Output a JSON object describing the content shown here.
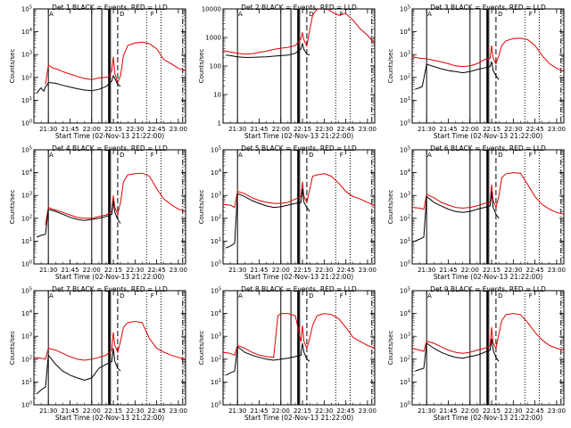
{
  "figure": {
    "x_start_label": "Start Time (02-Nov-13 21:22:00)",
    "y_axis_label": "Counts/sec",
    "x_tick_labels": [
      "21:30",
      "21:45",
      "22:00",
      "22:15",
      "22:30",
      "22:45",
      "23:00"
    ],
    "x_tick_values_min": [
      0,
      15,
      30,
      45,
      60,
      75,
      90
    ],
    "x_range_min": [
      -10,
      95
    ],
    "annotation_letters": [
      "A",
      "D",
      "F"
    ],
    "series_colors": {
      "black_events": "#000000",
      "red_lld": "#e00000"
    }
  },
  "chart_data": [
    {
      "type": "line",
      "panel": 1,
      "title": "Det 1  BLACK = Events, RED = LLD",
      "ylim": [
        1,
        100000
      ],
      "yscale": "log",
      "y_tick_labels": [
        "10^0",
        "10^1",
        "10^2",
        "10^3",
        "10^4",
        "10^5"
      ],
      "x_min": [
        -10,
        95
      ],
      "series": [
        {
          "name": "Events",
          "color": "#000000",
          "x": [
            -8,
            -7,
            -6,
            -5,
            -4,
            -3,
            -2,
            -1,
            0,
            5,
            10,
            15,
            20,
            25,
            30,
            35,
            40,
            44,
            45,
            46,
            48,
            50
          ],
          "y": [
            20,
            25,
            30,
            35,
            28,
            25,
            40,
            45,
            60,
            55,
            45,
            38,
            32,
            28,
            26,
            30,
            40,
            70,
            120,
            90,
            50,
            40
          ]
        },
        {
          "name": "LLD",
          "color": "#e00000",
          "x": [
            -2,
            0,
            3,
            6,
            10,
            15,
            20,
            25,
            30,
            35,
            40,
            42,
            44,
            45,
            46,
            48,
            50,
            52,
            55,
            60,
            65,
            70,
            75,
            80,
            85,
            90,
            95
          ],
          "y": [
            50,
            350,
            260,
            230,
            180,
            140,
            110,
            90,
            80,
            95,
            100,
            110,
            200,
            800,
            150,
            60,
            120,
            900,
            2500,
            3200,
            3500,
            3000,
            1800,
            600,
            400,
            250,
            200
          ]
        }
      ]
    },
    {
      "type": "line",
      "panel": 2,
      "title": "Det 2  BLACK = Events, RED = LLD",
      "ylim": [
        1,
        10000
      ],
      "yscale": "log",
      "y_tick_labels": [
        "1",
        "10",
        "100",
        "1000",
        "10000"
      ],
      "x_min": [
        -10,
        95
      ],
      "series": [
        {
          "name": "Events",
          "color": "#000000",
          "x": [
            -8,
            -5,
            0,
            5,
            10,
            15,
            20,
            25,
            30,
            35,
            40,
            44,
            45,
            46,
            48,
            50
          ],
          "y": [
            240,
            230,
            210,
            200,
            200,
            205,
            210,
            220,
            230,
            240,
            280,
            400,
            600,
            380,
            260,
            240
          ]
        },
        {
          "name": "LLD",
          "color": "#e00000",
          "x": [
            -10,
            -5,
            0,
            5,
            10,
            15,
            20,
            25,
            30,
            35,
            40,
            44,
            45,
            46,
            48,
            50,
            52,
            55,
            60,
            65,
            70,
            75,
            80,
            85,
            90,
            95
          ],
          "y": [
            350,
            310,
            280,
            260,
            270,
            300,
            330,
            380,
            420,
            450,
            520,
            900,
            1500,
            800,
            500,
            1800,
            6000,
            10000,
            12000,
            8000,
            6000,
            7000,
            4000,
            2000,
            1200,
            600
          ]
        }
      ]
    },
    {
      "type": "line",
      "panel": 3,
      "title": "Det 3  BLACK = Events, RED = LLD",
      "ylim": [
        1,
        100000
      ],
      "yscale": "log",
      "y_tick_labels": [
        "10^0",
        "10^1",
        "10^2",
        "10^3",
        "10^4",
        "10^5"
      ],
      "x_min": [
        -10,
        95
      ],
      "series": [
        {
          "name": "Events",
          "color": "#000000",
          "x": [
            -8,
            -5,
            -3,
            0,
            5,
            10,
            15,
            20,
            25,
            30,
            35,
            40,
            44,
            45,
            46,
            48,
            50
          ],
          "y": [
            30,
            35,
            40,
            380,
            300,
            240,
            200,
            180,
            160,
            180,
            220,
            260,
            300,
            500,
            200,
            120,
            80
          ]
        },
        {
          "name": "LLD",
          "color": "#e00000",
          "x": [
            -10,
            -5,
            0,
            5,
            10,
            15,
            20,
            25,
            30,
            35,
            40,
            44,
            45,
            46,
            48,
            50,
            52,
            55,
            60,
            65,
            70,
            75,
            80,
            85,
            90,
            95
          ],
          "y": [
            800,
            700,
            650,
            560,
            480,
            400,
            320,
            300,
            320,
            400,
            600,
            700,
            2500,
            700,
            400,
            900,
            2500,
            4000,
            5000,
            5200,
            4500,
            2500,
            900,
            400,
            250,
            180
          ]
        }
      ]
    },
    {
      "type": "line",
      "panel": 4,
      "title": "Det 4  BLACK = Events, RED = LLD",
      "ylim": [
        1,
        100000
      ],
      "yscale": "log",
      "y_tick_labels": [
        "10^0",
        "10^1",
        "10^2",
        "10^3",
        "10^4",
        "10^5"
      ],
      "x_min": [
        -10,
        95
      ],
      "series": [
        {
          "name": "Events",
          "color": "#000000",
          "x": [
            -8,
            -5,
            -2,
            0,
            5,
            10,
            15,
            20,
            25,
            30,
            35,
            40,
            44,
            45,
            46,
            48,
            50
          ],
          "y": [
            15,
            18,
            20,
            250,
            200,
            150,
            110,
            90,
            80,
            90,
            100,
            120,
            150,
            600,
            180,
            90,
            60
          ]
        },
        {
          "name": "LLD",
          "color": "#e00000",
          "x": [
            -2,
            0,
            3,
            6,
            10,
            15,
            20,
            25,
            30,
            35,
            40,
            44,
            45,
            46,
            48,
            50,
            52,
            55,
            60,
            65,
            70,
            75,
            80,
            85,
            90,
            95
          ],
          "y": [
            50,
            300,
            250,
            220,
            180,
            140,
            110,
            100,
            100,
            120,
            140,
            200,
            1000,
            300,
            150,
            500,
            4000,
            8000,
            9000,
            9500,
            7000,
            2000,
            700,
            400,
            250,
            200
          ]
        }
      ]
    },
    {
      "type": "line",
      "panel": 5,
      "title": "Det 5  BLACK = Events, RED = LLD",
      "ylim": [
        1,
        100000
      ],
      "yscale": "log",
      "y_tick_labels": [
        "10^0",
        "10^1",
        "10^2",
        "10^3",
        "10^4",
        "10^5"
      ],
      "x_min": [
        -10,
        95
      ],
      "series": [
        {
          "name": "Events",
          "color": "#000000",
          "x": [
            -8,
            -5,
            -2,
            0,
            5,
            10,
            15,
            20,
            25,
            30,
            35,
            40,
            44,
            45,
            46,
            48,
            50
          ],
          "y": [
            5,
            6,
            8,
            1200,
            900,
            600,
            450,
            350,
            300,
            320,
            380,
            450,
            500,
            2000,
            500,
            300,
            200
          ]
        },
        {
          "name": "LLD",
          "color": "#e00000",
          "x": [
            -10,
            -5,
            -2,
            0,
            5,
            10,
            15,
            20,
            25,
            30,
            35,
            40,
            44,
            45,
            46,
            48,
            50,
            52,
            55,
            60,
            65,
            70,
            75,
            80,
            85,
            90,
            95
          ],
          "y": [
            400,
            380,
            300,
            1500,
            1200,
            800,
            600,
            500,
            450,
            450,
            500,
            700,
            900,
            4000,
            900,
            500,
            1800,
            7000,
            8000,
            9000,
            7000,
            3500,
            1500,
            900,
            700,
            500,
            350
          ]
        }
      ]
    },
    {
      "type": "line",
      "panel": 6,
      "title": "Det 6  BLACK = Events, RED = LLD",
      "ylim": [
        1,
        100000
      ],
      "yscale": "log",
      "y_tick_labels": [
        "10^0",
        "10^1",
        "10^2",
        "10^3",
        "10^4",
        "10^5"
      ],
      "x_min": [
        -10,
        95
      ],
      "series": [
        {
          "name": "Events",
          "color": "#000000",
          "x": [
            -8,
            -5,
            -2,
            0,
            5,
            10,
            15,
            20,
            25,
            30,
            35,
            40,
            44,
            45,
            46,
            48,
            50
          ],
          "y": [
            10,
            12,
            15,
            900,
            500,
            350,
            250,
            200,
            180,
            200,
            250,
            300,
            350,
            1500,
            300,
            150,
            100
          ]
        },
        {
          "name": "LLD",
          "color": "#e00000",
          "x": [
            -10,
            -5,
            -2,
            0,
            5,
            10,
            15,
            20,
            25,
            30,
            35,
            40,
            44,
            45,
            46,
            48,
            50,
            52,
            55,
            60,
            65,
            70,
            75,
            80,
            85,
            90,
            95
          ],
          "y": [
            300,
            280,
            250,
            1100,
            800,
            500,
            380,
            300,
            280,
            300,
            350,
            450,
            500,
            3000,
            600,
            300,
            900,
            6000,
            9000,
            10000,
            9500,
            3000,
            900,
            400,
            250,
            180,
            150
          ]
        }
      ]
    },
    {
      "type": "line",
      "panel": 7,
      "title": "Det 7  BLACK = Events, RED = LLD",
      "ylim": [
        1,
        100000
      ],
      "yscale": "log",
      "y_tick_labels": [
        "10^0",
        "10^1",
        "10^2",
        "10^3",
        "10^4",
        "10^5"
      ],
      "x_min": [
        -10,
        95
      ],
      "series": [
        {
          "name": "Events",
          "color": "#000000",
          "x": [
            -8,
            -6,
            -4,
            -2,
            0,
            5,
            10,
            15,
            20,
            25,
            30,
            35,
            40,
            44,
            45,
            46,
            48,
            50
          ],
          "y": [
            3,
            4,
            5,
            6,
            150,
            60,
            30,
            20,
            15,
            12,
            15,
            40,
            60,
            80,
            300,
            80,
            40,
            30
          ]
        },
        {
          "name": "LLD",
          "color": "#e00000",
          "x": [
            -10,
            -5,
            -2,
            0,
            5,
            10,
            15,
            20,
            25,
            30,
            35,
            40,
            44,
            45,
            46,
            48,
            50,
            52,
            55,
            60,
            65,
            70,
            75,
            80,
            85,
            90,
            95
          ],
          "y": [
            120,
            110,
            100,
            300,
            250,
            180,
            130,
            100,
            90,
            100,
            120,
            150,
            250,
            1500,
            400,
            200,
            600,
            2500,
            4000,
            4500,
            4000,
            800,
            300,
            200,
            150,
            120,
            100
          ]
        }
      ]
    },
    {
      "type": "line",
      "panel": 8,
      "title": "Det 8  BLACK = Events, RED = LLD",
      "ylim": [
        1,
        100000
      ],
      "yscale": "log",
      "y_tick_labels": [
        "10^0",
        "10^1",
        "10^2",
        "10^3",
        "10^4",
        "10^5"
      ],
      "x_min": [
        -10,
        95
      ],
      "series": [
        {
          "name": "Events",
          "color": "#000000",
          "x": [
            -8,
            -5,
            -2,
            0,
            5,
            10,
            15,
            20,
            25,
            30,
            35,
            40,
            44,
            45,
            46,
            48,
            50
          ],
          "y": [
            20,
            25,
            30,
            350,
            200,
            150,
            120,
            100,
            90,
            100,
            110,
            130,
            150,
            500,
            200,
            100,
            80
          ]
        },
        {
          "name": "LLD",
          "color": "#e00000",
          "x": [
            -10,
            -5,
            -2,
            0,
            5,
            10,
            15,
            20,
            25,
            28,
            30,
            35,
            40,
            44,
            45,
            46,
            48,
            50,
            52,
            55,
            60,
            65,
            70,
            75,
            80,
            85,
            90,
            95
          ],
          "y": [
            200,
            180,
            150,
            400,
            300,
            200,
            150,
            130,
            120,
            8000,
            10000,
            10000,
            8000,
            600,
            3000,
            600,
            300,
            800,
            3000,
            8000,
            10000,
            9000,
            6000,
            2500,
            900,
            600,
            400,
            300
          ]
        }
      ]
    },
    {
      "type": "line",
      "panel": 9,
      "title": "Det 9  BLACK = Events, RED = LLD",
      "ylim": [
        1,
        100000
      ],
      "yscale": "log",
      "y_tick_labels": [
        "10^0",
        "10^1",
        "10^2",
        "10^3",
        "10^4",
        "10^5"
      ],
      "x_min": [
        -10,
        95
      ],
      "series": [
        {
          "name": "Events",
          "color": "#000000",
          "x": [
            -8,
            -5,
            -2,
            0,
            5,
            10,
            15,
            20,
            25,
            30,
            35,
            40,
            44,
            45,
            46,
            48,
            50
          ],
          "y": [
            30,
            35,
            40,
            500,
            300,
            200,
            150,
            120,
            110,
            130,
            150,
            200,
            250,
            800,
            250,
            120,
            80
          ]
        },
        {
          "name": "LLD",
          "color": "#e00000",
          "x": [
            -10,
            -5,
            -2,
            0,
            5,
            10,
            15,
            20,
            25,
            30,
            35,
            40,
            44,
            45,
            46,
            48,
            50,
            52,
            55,
            60,
            65,
            70,
            75,
            80,
            85,
            90,
            95
          ],
          "y": [
            300,
            250,
            220,
            600,
            500,
            350,
            250,
            200,
            180,
            200,
            250,
            300,
            400,
            2500,
            500,
            300,
            1200,
            5000,
            9000,
            10000,
            9000,
            4000,
            1500,
            700,
            400,
            300,
            250
          ]
        }
      ]
    }
  ]
}
